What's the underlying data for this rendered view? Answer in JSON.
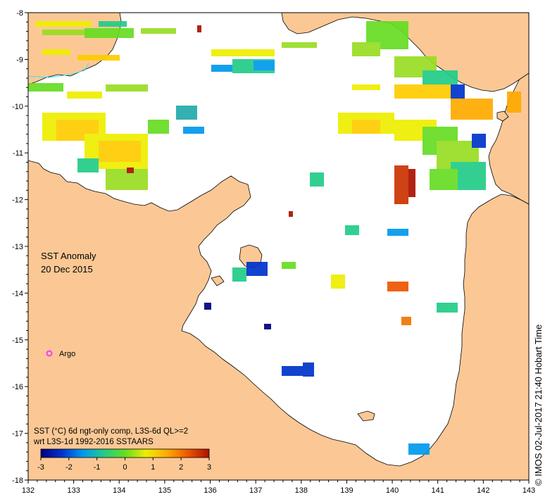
{
  "map": {
    "title_line1": "SST Anomaly",
    "title_line2": "20 Dec 2015",
    "legend_argo": "Argo",
    "caption_line1": "SST (°C) 6d ngt-only comp, L3S-6d QL>=2",
    "caption_line2": "wrt L3S-1d 1992-2016 SSTAARS",
    "credit": "© IMOS 02-Jul-2017 21:40 Hobart Time",
    "colors": {
      "land": "#fbc895",
      "water": "#ffffff",
      "coast": "#000000",
      "argo": "#ff33ff",
      "cyan_line": "#33e6ff"
    }
  },
  "axes": {
    "x_ticks": [
      "132",
      "133",
      "134",
      "135",
      "136",
      "137",
      "138",
      "139",
      "140",
      "141",
      "142",
      "143"
    ],
    "y_ticks": [
      "-8",
      "-9",
      "-10",
      "-11",
      "-12",
      "-13",
      "-14",
      "-15",
      "-16",
      "-17",
      "-18"
    ],
    "x_range": [
      132,
      143
    ],
    "y_range": [
      -18,
      -8
    ]
  },
  "colorbar": {
    "ticks": [
      "-3",
      "-2",
      "-1",
      "0",
      "1",
      "2",
      "3"
    ],
    "range": [
      -3,
      3
    ],
    "colors": [
      "#00007f",
      "#0033cc",
      "#0099ee",
      "#22cc88",
      "#66dd22",
      "#eeee00",
      "#ffaa00",
      "#ee5500",
      "#aa1100"
    ]
  },
  "argo_float": {
    "lon": 132.48,
    "lat": -15.3
  }
}
